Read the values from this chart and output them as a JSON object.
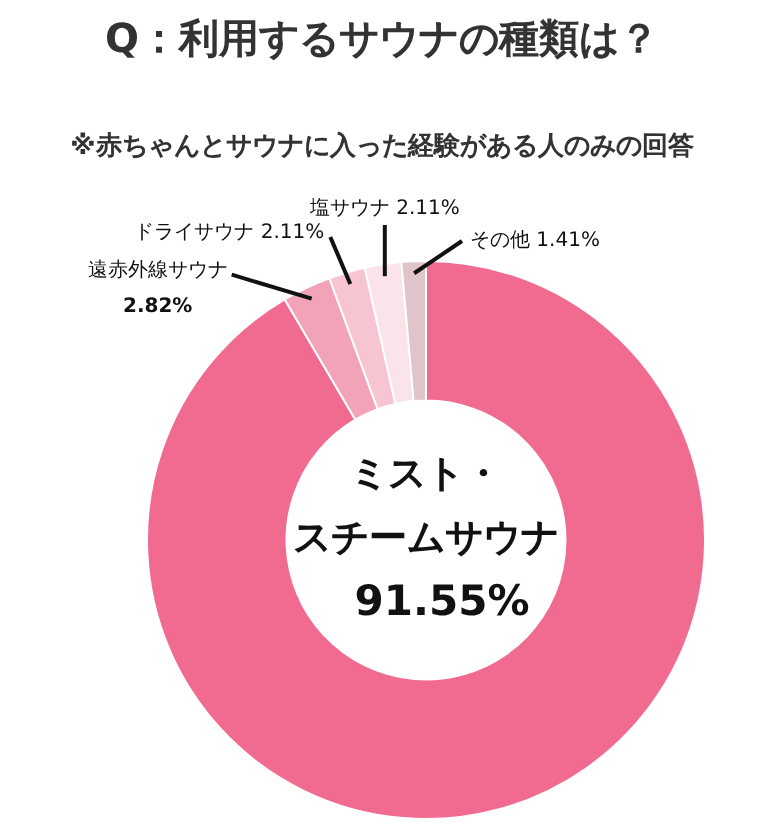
{
  "chart_data": {
    "type": "donut",
    "title": "Q：利用するサウナの種類は？",
    "subtitle": "※赤ちゃんとサウナに入った経験がある人のみの回答",
    "categories": [
      "ミスト・スチームサウナ",
      "遠赤外線サウナ",
      "ドライサウナ",
      "塩サウナ",
      "その他"
    ],
    "values": [
      91.55,
      2.82,
      2.11,
      2.11,
      1.41
    ],
    "value_labels": [
      "91.55%",
      "2.82%",
      "2.11%",
      "2.11%",
      "1.41%"
    ],
    "colors": [
      "#f06b8f",
      "#f3a3b8",
      "#f7c5d2",
      "#fbe3ea",
      "#dfc4ca"
    ],
    "legend": false
  }
}
